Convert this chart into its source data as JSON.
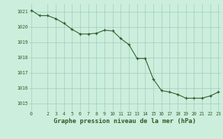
{
  "x": [
    0,
    1,
    2,
    3,
    4,
    5,
    6,
    7,
    8,
    9,
    10,
    11,
    12,
    13,
    14,
    15,
    16,
    17,
    18,
    19,
    20,
    21,
    22,
    23
  ],
  "y": [
    1021.1,
    1020.75,
    1020.75,
    1020.55,
    1020.25,
    1019.85,
    1019.55,
    1019.55,
    1019.6,
    1019.8,
    1019.75,
    1019.25,
    1018.85,
    1017.95,
    1017.95,
    1016.6,
    1015.85,
    1015.75,
    1015.6,
    1015.35,
    1015.35,
    1015.35,
    1015.5,
    1015.75
  ],
  "ylim": [
    1014.5,
    1021.5
  ],
  "yticks": [
    1015,
    1016,
    1017,
    1018,
    1019,
    1020,
    1021
  ],
  "xticks": [
    0,
    2,
    3,
    4,
    5,
    6,
    7,
    8,
    9,
    10,
    11,
    12,
    13,
    14,
    15,
    16,
    17,
    18,
    19,
    20,
    21,
    22,
    23
  ],
  "xlabel": "Graphe pression niveau de la mer (hPa)",
  "line_color": "#2d5a27",
  "marker_color": "#2d5a27",
  "bg_color": "#cceedd",
  "grid_color": "#99ccbb",
  "tick_color": "#2d5a27",
  "label_color": "#2d5a27"
}
